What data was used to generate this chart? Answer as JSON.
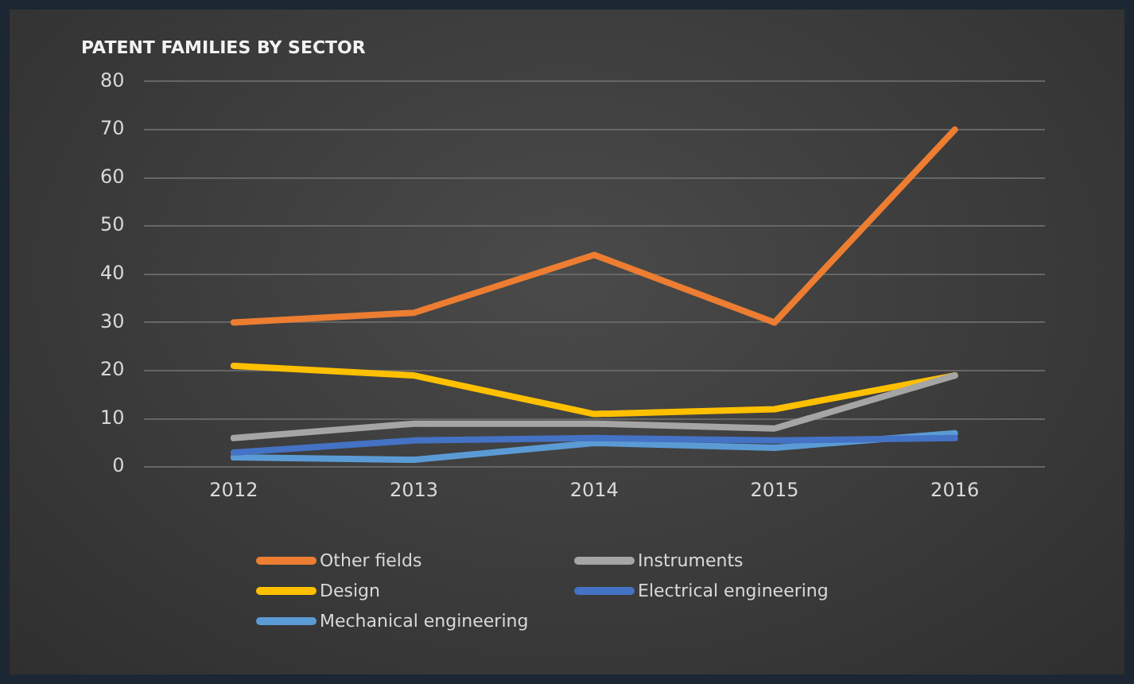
{
  "chart_data": {
    "type": "line",
    "title": "PATENT FAMILIES BY SECTOR",
    "categories": [
      "2012",
      "2013",
      "2014",
      "2015",
      "2016"
    ],
    "series": [
      {
        "name": "Other fields",
        "color": "#ed7d31",
        "values": [
          30,
          32,
          44,
          30,
          70
        ]
      },
      {
        "name": "Instruments",
        "color": "#a5a5a5",
        "values": [
          6,
          9,
          9,
          8,
          19
        ]
      },
      {
        "name": "Design",
        "color": "#ffc000",
        "values": [
          21,
          19,
          11,
          12,
          19
        ]
      },
      {
        "name": "Electrical engineering",
        "color": "#4472c4",
        "values": [
          3,
          5.5,
          6,
          5.5,
          6
        ]
      },
      {
        "name": "Mechanical engineering",
        "color": "#5b9bd5",
        "values": [
          2,
          1.5,
          5,
          4,
          7
        ]
      }
    ],
    "ylim": [
      0,
      80
    ],
    "yticks": [
      0,
      10,
      20,
      30,
      40,
      50,
      60,
      70,
      80
    ],
    "grid": "y",
    "legend": "bottom",
    "marker": "none",
    "line_style": "solid"
  }
}
